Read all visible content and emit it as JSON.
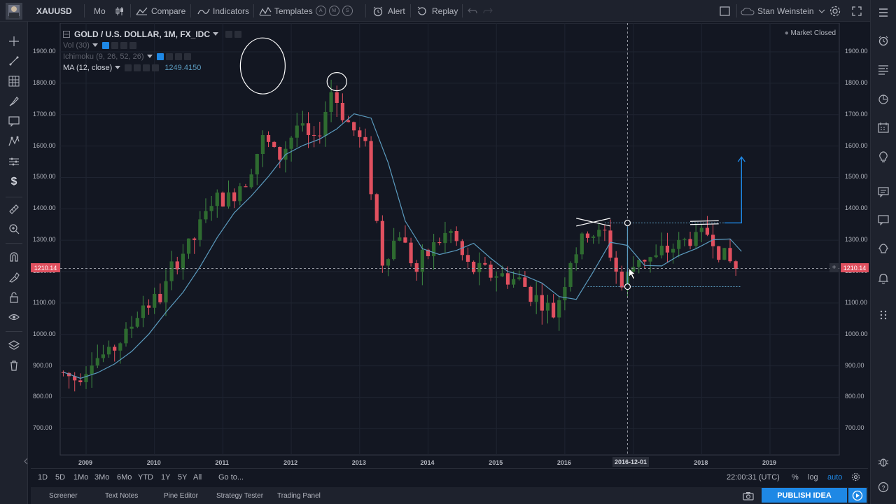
{
  "toolbar": {
    "symbol": "XAUUSD",
    "interval": "Mo",
    "compare": "Compare",
    "indicators": "Indicators",
    "templates": "Templates",
    "template_badges": [
      "A",
      "M",
      "S"
    ],
    "alert": "Alert",
    "replay": "Replay",
    "user": "Stan Weinstein"
  },
  "legend": {
    "title": "GOLD / U.S. DOLLAR, 1M, FX_IDC",
    "vol": "Vol (30)",
    "ichimoku": "Ichimoku (9, 26, 52, 26)",
    "ma": "MA (12, close)",
    "ma_value": "1249.4150",
    "market_status": "Market Closed"
  },
  "price_axis": {
    "labels": [
      "1900.00",
      "1800.00",
      "1700.00",
      "1600.00",
      "1500.00",
      "1400.00",
      "1300.00",
      "1200.00",
      "1100.00",
      "1000.00",
      "900.00",
      "800.00",
      "700.00"
    ],
    "current_price": "1210.14"
  },
  "time_axis": {
    "labels": [
      "2009",
      "2010",
      "2011",
      "2012",
      "2013",
      "2014",
      "2015",
      "2016",
      "2017",
      "2018",
      "2019"
    ],
    "crosshair_date": "2016-12-01"
  },
  "bottom": {
    "ranges": [
      "1D",
      "5D",
      "1Mo",
      "3Mo",
      "6Mo",
      "YTD",
      "1Y",
      "5Y",
      "All"
    ],
    "goto": "Go to...",
    "clock": "22:00:31 (UTC)",
    "percent": "%",
    "log": "log",
    "auto": "auto"
  },
  "panels": {
    "tabs": [
      "Screener",
      "Text Notes",
      "Pine Editor",
      "Strategy Tester",
      "Trading Panel"
    ],
    "publish": "PUBLISH IDEA"
  },
  "colors": {
    "up": "#2e6b30",
    "down": "#e0505f",
    "ma": "#5b9bbf",
    "accent": "#1e88e5"
  },
  "chart_data": {
    "type": "candlestick",
    "title": "GOLD / U.S. DOLLAR, 1M, FX_IDC",
    "ylim": [
      650,
      1950
    ],
    "x_ticks": [
      "2009",
      "2010",
      "2011",
      "2012",
      "2013",
      "2014",
      "2015",
      "2016",
      "2017",
      "2018",
      "2019"
    ],
    "current_price": 1210.14,
    "close_by_quarter": [
      {
        "date": "2008-09",
        "close": 880
      },
      {
        "date": "2008-12",
        "close": 860
      },
      {
        "date": "2009-03",
        "close": 920
      },
      {
        "date": "2009-06",
        "close": 940
      },
      {
        "date": "2009-09",
        "close": 1000
      },
      {
        "date": "2009-12",
        "close": 1095
      },
      {
        "date": "2010-03",
        "close": 1115
      },
      {
        "date": "2010-06",
        "close": 1240
      },
      {
        "date": "2010-09",
        "close": 1305
      },
      {
        "date": "2010-12",
        "close": 1420
      },
      {
        "date": "2011-03",
        "close": 1430
      },
      {
        "date": "2011-06",
        "close": 1500
      },
      {
        "date": "2011-09",
        "close": 1620
      },
      {
        "date": "2011-12",
        "close": 1565
      },
      {
        "date": "2012-03",
        "close": 1665
      },
      {
        "date": "2012-06",
        "close": 1600
      },
      {
        "date": "2012-09",
        "close": 1775
      },
      {
        "date": "2012-12",
        "close": 1675
      },
      {
        "date": "2013-03",
        "close": 1595
      },
      {
        "date": "2013-06",
        "close": 1235
      },
      {
        "date": "2013-09",
        "close": 1325
      },
      {
        "date": "2013-12",
        "close": 1200
      },
      {
        "date": "2014-03",
        "close": 1285
      },
      {
        "date": "2014-06",
        "close": 1325
      },
      {
        "date": "2014-09",
        "close": 1210
      },
      {
        "date": "2014-12",
        "close": 1200
      },
      {
        "date": "2015-03",
        "close": 1185
      },
      {
        "date": "2015-06",
        "close": 1170
      },
      {
        "date": "2015-09",
        "close": 1115
      },
      {
        "date": "2015-12",
        "close": 1060
      },
      {
        "date": "2016-03",
        "close": 1235
      },
      {
        "date": "2016-06",
        "close": 1320
      },
      {
        "date": "2016-09",
        "close": 1315
      },
      {
        "date": "2016-12",
        "close": 1150
      },
      {
        "date": "2017-03",
        "close": 1250
      },
      {
        "date": "2017-06",
        "close": 1240
      },
      {
        "date": "2017-09",
        "close": 1280
      },
      {
        "date": "2017-12",
        "close": 1305
      },
      {
        "date": "2018-03",
        "close": 1325
      },
      {
        "date": "2018-06",
        "close": 1250
      },
      {
        "date": "2018-08",
        "close": 1210
      }
    ]
  }
}
